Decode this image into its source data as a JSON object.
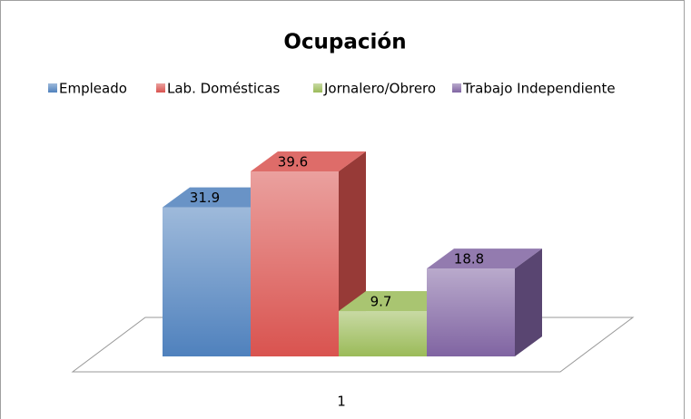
{
  "chart_data": {
    "type": "bar3d",
    "title": "Ocupación",
    "categories": [
      "1"
    ],
    "series": [
      {
        "name": "Empleado",
        "color": "#4f81bd",
        "values": [
          31.9
        ]
      },
      {
        "name": "Lab. Domésticas",
        "color": "#d9534f",
        "values": [
          39.6
        ]
      },
      {
        "name": "Jornalero/Obrero",
        "color": "#9bbb59",
        "values": [
          9.7
        ]
      },
      {
        "name": "Trabajo Independiente",
        "color": "#8064a2",
        "values": [
          18.8
        ]
      }
    ],
    "legend": "top"
  }
}
